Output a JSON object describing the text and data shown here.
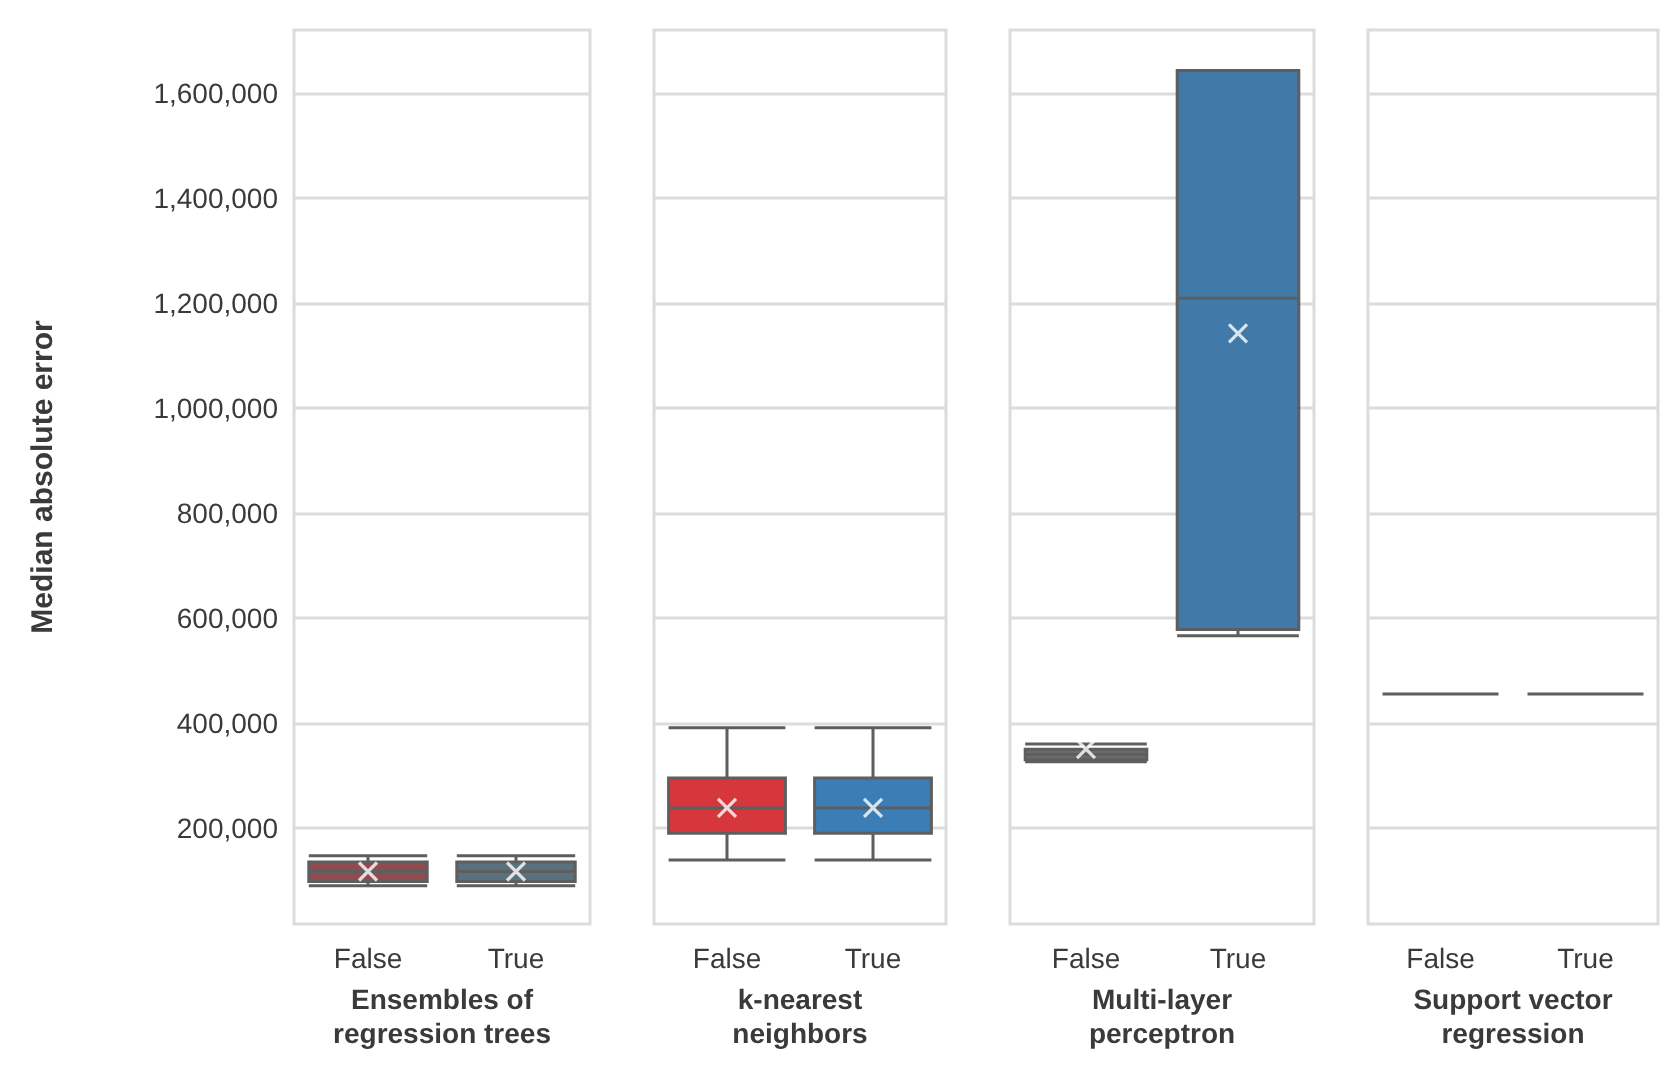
{
  "chart_data": [
    {
      "type": "box",
      "xlabel": "Ensembles of\nregression trees",
      "ylabel": "Median absolute error",
      "categories": [
        "False",
        "True"
      ],
      "colors": [
        "#8e4b50",
        "#59707f"
      ],
      "ylim": [
        17000,
        1720000
      ],
      "yticks": [
        {
          "value": 200000,
          "label": "200,000"
        },
        {
          "value": 400000,
          "label": "400,000"
        },
        {
          "value": 600000,
          "label": "600,000"
        },
        {
          "value": 800000,
          "label": "800,000"
        },
        {
          "value": 1000000,
          "label": "1,000,000"
        },
        {
          "value": 1200000,
          "label": "1,200,000"
        },
        {
          "value": 1400000,
          "label": "1,400,000"
        },
        {
          "value": 1600000,
          "label": "1,600,000"
        }
      ],
      "grid": "y",
      "boxes": [
        {
          "low": 90000,
          "q1": 98000,
          "median": 117000,
          "q3": 135000,
          "high": 147000,
          "mean": 117000
        },
        {
          "low": 90000,
          "q1": 98000,
          "median": 117000,
          "q3": 135000,
          "high": 147000,
          "mean": 117000
        }
      ]
    },
    {
      "type": "box",
      "xlabel": "k-nearest\nneighbors",
      "categories": [
        "False",
        "True"
      ],
      "colors": [
        "#d6373d",
        "#3b7db5"
      ],
      "ylim": [
        17000,
        1720000
      ],
      "yticks": [
        200000,
        400000,
        600000,
        800000,
        1000000,
        1200000,
        1400000,
        1600000
      ],
      "grid": "y",
      "tick_labels": "x",
      "boxes": [
        {
          "low": 139000,
          "q1": 190000,
          "median": 238000,
          "q3": 295000,
          "high": 391000,
          "mean": 238000
        },
        {
          "low": 139000,
          "q1": 190000,
          "median": 238000,
          "q3": 295000,
          "high": 391000,
          "mean": 238000
        }
      ]
    },
    {
      "type": "box",
      "xlabel": "Multi-layer\nperceptron",
      "categories": [
        "False",
        "True"
      ],
      "colors": [
        "#6b6b6b",
        "#4179a8"
      ],
      "ylim": [
        17000,
        1720000
      ],
      "yticks": [
        200000,
        400000,
        600000,
        800000,
        1000000,
        1200000,
        1400000,
        1600000
      ],
      "grid": "y",
      "tick_labels": "x",
      "boxes": [
        {
          "low": 326000,
          "q1": 330000,
          "median": 340000,
          "q3": 350000,
          "high": 360000,
          "mean": 350000
        },
        {
          "low": 566000,
          "q1": 578000,
          "median": 1209000,
          "q3": 1643000,
          "high": 1643000,
          "mean": 1142000
        }
      ]
    },
    {
      "type": "box",
      "xlabel": "Support vector\nregression",
      "categories": [
        "False",
        "True"
      ],
      "colors": [
        "#6b6b6b",
        "#6b6b6b"
      ],
      "ylim": [
        17000,
        1720000
      ],
      "yticks": [
        200000,
        400000,
        600000,
        800000,
        1000000,
        1200000,
        1400000,
        1600000
      ],
      "grid": "y",
      "tick_labels": "x",
      "boxes": [
        {
          "low": 455000,
          "q1": 455000,
          "median": 455000,
          "q3": 455000,
          "high": 455000
        },
        {
          "low": 455000,
          "q1": 455000,
          "median": 455000,
          "q3": 455000,
          "high": 455000
        }
      ]
    }
  ]
}
